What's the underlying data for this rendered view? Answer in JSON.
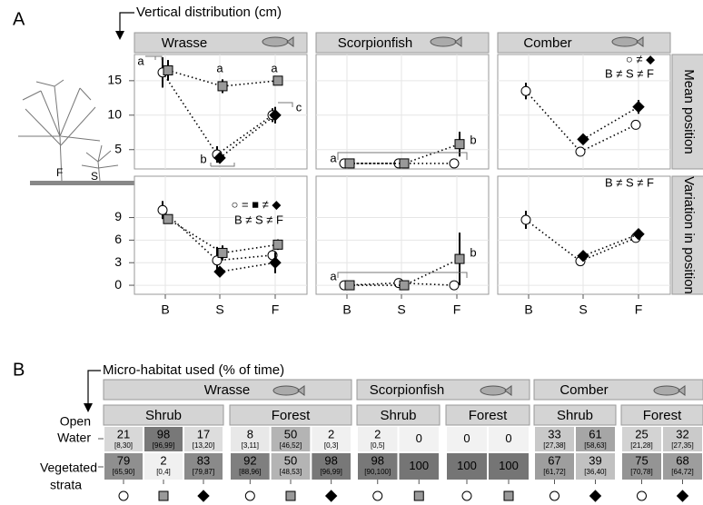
{
  "panel_a": {
    "label": "A",
    "axis_title": "Vertical distribution (cm)",
    "illustration_labels": [
      "F",
      "S"
    ]
  },
  "chart_data": [
    {
      "type": "line",
      "title": "Wrasse",
      "ylim": [
        2.2,
        18.8
      ],
      "yticks": [
        5,
        10,
        15
      ],
      "grid": true,
      "series": [
        {
          "marker": "circle",
          "color": "#ffffff",
          "values": [
            16.2,
            4.3,
            10.0
          ],
          "errors": [
            2.2,
            1.2,
            1.0
          ]
        },
        {
          "marker": "square",
          "color": "#999999",
          "values": [
            16.5,
            14.2,
            15.0
          ],
          "errors": [
            1.5,
            1.0,
            0.4
          ]
        },
        {
          "marker": "diamond",
          "color": "#000000",
          "values": [
            null,
            3.8,
            10.0
          ],
          "errors": [
            null,
            0.4,
            1.2
          ]
        }
      ],
      "annotations": [
        "a",
        "a",
        "a",
        "b",
        "c"
      ]
    },
    {
      "type": "line",
      "title": "Scorpionfish",
      "ylim": [
        2.2,
        18.8
      ],
      "yticks": [
        5,
        10,
        15
      ],
      "grid": true,
      "series": [
        {
          "marker": "circle",
          "color": "#ffffff",
          "values": [
            3.0,
            3.0,
            3.0
          ],
          "errors": [
            0.3,
            0.2,
            0.2
          ]
        },
        {
          "marker": "square",
          "color": "#999999",
          "values": [
            3.0,
            3.0,
            5.8
          ],
          "errors": [
            0.3,
            0.2,
            1.8
          ]
        }
      ],
      "annotations": [
        "a",
        "b"
      ]
    },
    {
      "type": "line",
      "title": "Comber",
      "row_label": "Mean position",
      "ylim": [
        2.2,
        18.8
      ],
      "yticks": [
        5,
        10,
        15
      ],
      "grid": true,
      "series": [
        {
          "marker": "circle",
          "color": "#ffffff",
          "values": [
            13.5,
            4.7,
            8.6
          ],
          "errors": [
            1.2,
            0.4,
            0.6
          ]
        },
        {
          "marker": "diamond",
          "color": "#000000",
          "values": [
            null,
            6.5,
            11.2
          ],
          "errors": [
            null,
            0.4,
            1.0
          ]
        }
      ],
      "annotations": [
        "○ ≠ ◆",
        "B ≠ S ≠ F"
      ]
    },
    {
      "type": "line",
      "categories": [
        "B",
        "S",
        "F"
      ],
      "ylim": [
        -1.2,
        14.5
      ],
      "yticks": [
        0,
        3,
        6,
        9
      ],
      "grid": true,
      "series": [
        {
          "marker": "circle",
          "color": "#ffffff",
          "values": [
            10.0,
            3.3,
            4.0
          ],
          "errors": [
            1.2,
            1.8,
            0.7
          ]
        },
        {
          "marker": "square",
          "color": "#999999",
          "values": [
            8.8,
            4.3,
            5.4
          ],
          "errors": [
            0.4,
            1.0,
            0.7
          ]
        },
        {
          "marker": "diamond",
          "color": "#000000",
          "values": [
            null,
            1.8,
            3.0
          ],
          "errors": [
            null,
            0.3,
            1.4
          ]
        }
      ],
      "annotations": [
        "○ = ■ ≠ ◆",
        "B ≠ S ≠ F"
      ]
    },
    {
      "type": "line",
      "categories": [
        "B",
        "S",
        "F"
      ],
      "ylim": [
        -1.2,
        14.5
      ],
      "yticks": [
        0,
        3,
        6,
        9
      ],
      "grid": true,
      "series": [
        {
          "marker": "circle",
          "color": "#ffffff",
          "values": [
            0,
            0.3,
            0
          ],
          "errors": [
            0.2,
            0.2,
            0.2
          ]
        },
        {
          "marker": "square",
          "color": "#999999",
          "values": [
            0,
            0,
            3.5
          ],
          "errors": [
            0.2,
            0.2,
            3.5
          ]
        }
      ],
      "annotations": [
        "a",
        "b"
      ]
    },
    {
      "type": "line",
      "categories": [
        "B",
        "S",
        "F"
      ],
      "row_label": "Variation in position",
      "ylim": [
        -1.2,
        14.5
      ],
      "yticks": [
        0,
        3,
        6,
        9
      ],
      "grid": true,
      "series": [
        {
          "marker": "circle",
          "color": "#ffffff",
          "values": [
            8.7,
            3.2,
            6.3
          ],
          "errors": [
            1.2,
            0.5,
            0.4
          ]
        },
        {
          "marker": "diamond",
          "color": "#000000",
          "values": [
            null,
            3.9,
            6.8
          ],
          "errors": [
            null,
            0.4,
            0.4
          ]
        }
      ],
      "annotations": [
        "B ≠ S ≠ F"
      ]
    }
  ],
  "table": {
    "label": "B",
    "title": "Micro-habitat used (% of time)",
    "row_labels": [
      [
        "Open",
        "Water"
      ],
      [
        "Vegetated",
        "strata"
      ]
    ],
    "groups": [
      {
        "name": "Wrasse",
        "habitats": [
          {
            "name": "Shrub",
            "markers": [
              "circle",
              "square",
              "diamond"
            ],
            "rows": [
              [
                {
                  "value": 21,
                  "ci": "[8,30]"
                },
                {
                  "value": 98,
                  "ci": "[96,99]"
                },
                {
                  "value": 17,
                  "ci": "[13,20]"
                }
              ],
              [
                {
                  "value": 79,
                  "ci": "[65,90]"
                },
                {
                  "value": 2,
                  "ci": "[0,4]"
                },
                {
                  "value": 83,
                  "ci": "[79,87]"
                }
              ]
            ]
          },
          {
            "name": "Forest",
            "markers": [
              "circle",
              "square",
              "diamond"
            ],
            "rows": [
              [
                {
                  "value": 8,
                  "ci": "[3,11]"
                },
                {
                  "value": 50,
                  "ci": "[46,52]"
                },
                {
                  "value": 2,
                  "ci": "[0,3]"
                }
              ],
              [
                {
                  "value": 92,
                  "ci": "[88,96]"
                },
                {
                  "value": 50,
                  "ci": "[48,53]"
                },
                {
                  "value": 98,
                  "ci": "[96,99]"
                }
              ]
            ]
          }
        ]
      },
      {
        "name": "Scorpionfish",
        "habitats": [
          {
            "name": "Shrub",
            "markers": [
              "circle",
              "square"
            ],
            "rows": [
              [
                {
                  "value": 2,
                  "ci": "[0,5]"
                },
                {
                  "value": 0
                }
              ],
              [
                {
                  "value": 98,
                  "ci": "[90,100]"
                },
                {
                  "value": 100
                }
              ]
            ]
          },
          {
            "name": "Forest",
            "markers": [
              "circle",
              "square"
            ],
            "rows": [
              [
                {
                  "value": 0
                },
                {
                  "value": 0
                }
              ],
              [
                {
                  "value": 100
                },
                {
                  "value": 100
                }
              ]
            ]
          }
        ]
      },
      {
        "name": "Comber",
        "habitats": [
          {
            "name": "Shrub",
            "markers": [
              "circle",
              "diamond"
            ],
            "rows": [
              [
                {
                  "value": 33,
                  "ci": "[27,38]"
                },
                {
                  "value": 61,
                  "ci": "[58,63]"
                }
              ],
              [
                {
                  "value": 67,
                  "ci": "[61,72]"
                },
                {
                  "value": 39,
                  "ci": "[36,40]"
                }
              ]
            ]
          },
          {
            "name": "Forest",
            "markers": [
              "circle",
              "diamond"
            ],
            "rows": [
              [
                {
                  "value": 25,
                  "ci": "[21,28]"
                },
                {
                  "value": 32,
                  "ci": "[27,35]"
                }
              ],
              [
                {
                  "value": 75,
                  "ci": "[70,78]"
                },
                {
                  "value": 68,
                  "ci": "[64,72]"
                }
              ]
            ]
          }
        ]
      }
    ]
  }
}
